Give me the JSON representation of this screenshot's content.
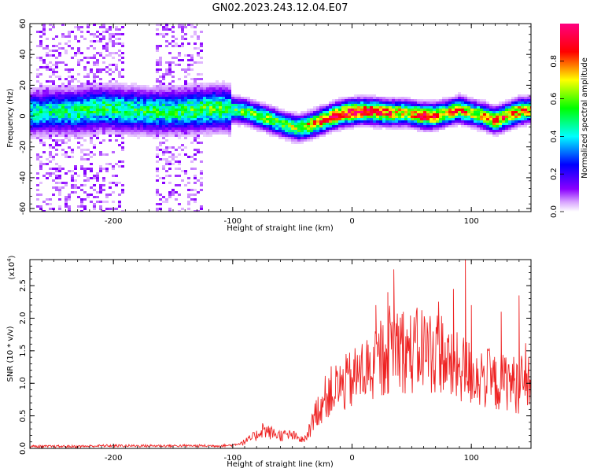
{
  "figure": {
    "title": "GN02.2023.243.12.04.E07"
  },
  "chart_data": [
    {
      "type": "heatmap",
      "name": "spectrogram",
      "xlabel": "Height of straight line (km)",
      "ylabel": "Frequency (Hz)",
      "xlim": [
        -270,
        150
      ],
      "ylim": [
        -62,
        60
      ],
      "x_ticks": [
        -200,
        -100,
        0,
        100
      ],
      "y_ticks": [
        -60,
        -40,
        -20,
        0,
        20,
        40,
        60
      ],
      "colorbar": {
        "label": "Normalized spectral amplitude",
        "range": [
          0,
          1
        ],
        "ticks": [
          0.0,
          0.2,
          0.4,
          0.6,
          0.8
        ],
        "colors": [
          "#ffffff",
          "#d9a6ff",
          "#8a00ff",
          "#0000ff",
          "#00ffff",
          "#00ff00",
          "#ffff00",
          "#ff0000",
          "#ff0080"
        ]
      },
      "ridge": {
        "x": [
          -270,
          -250,
          -230,
          -210,
          -190,
          -170,
          -150,
          -130,
          -110,
          -90,
          -70,
          -55,
          -45,
          -35,
          -25,
          -15,
          -5,
          5,
          15,
          30,
          45,
          60,
          70,
          80,
          90,
          100,
          110,
          120,
          130,
          140,
          150
        ],
        "y": [
          2,
          3,
          3,
          5,
          4,
          3,
          3,
          4,
          5,
          3,
          -2,
          -6,
          -8,
          -6,
          -3,
          0,
          2,
          3,
          3,
          2,
          2,
          0,
          0,
          2,
          4,
          2,
          0,
          -3,
          0,
          3,
          4
        ],
        "amplitude": [
          0.45,
          0.45,
          0.5,
          0.5,
          0.5,
          0.5,
          0.5,
          0.55,
          0.55,
          0.55,
          0.6,
          0.55,
          0.65,
          0.75,
          0.85,
          0.9,
          0.95,
          0.95,
          0.9,
          0.85,
          0.7,
          0.9,
          0.85,
          0.7,
          0.8,
          0.7,
          0.75,
          0.8,
          0.85,
          0.8,
          0.75
        ]
      },
      "noise_bands_x": [
        [
          -265,
          -190
        ],
        [
          -165,
          -125
        ]
      ]
    },
    {
      "type": "line",
      "name": "snr",
      "xlabel": "Height of straight line (km)",
      "ylabel": "SNR (10 * v/v)",
      "y_scale_label": "(x10",
      "y_scale_exponent": "4",
      "xlim": [
        -270,
        150
      ],
      "ylim": [
        0,
        2.9
      ],
      "x_ticks": [
        -200,
        -100,
        0,
        100
      ],
      "y_ticks": [
        0.0,
        0.5,
        1.0,
        1.5,
        2.0,
        2.5
      ],
      "series": [
        {
          "color": "#ee2222",
          "x": [
            -270,
            -250,
            -230,
            -210,
            -190,
            -170,
            -150,
            -130,
            -110,
            -100,
            -90,
            -80,
            -75,
            -70,
            -60,
            -50,
            -45,
            -40,
            -35,
            -30,
            -25,
            -20,
            -10,
            0,
            10,
            20,
            25,
            30,
            35,
            40,
            45,
            50,
            55,
            60,
            65,
            70,
            75,
            80,
            85,
            90,
            95,
            100,
            110,
            120,
            130,
            140,
            150
          ],
          "y": [
            0.03,
            0.03,
            0.03,
            0.04,
            0.04,
            0.04,
            0.04,
            0.04,
            0.04,
            0.05,
            0.1,
            0.2,
            0.3,
            0.25,
            0.2,
            0.2,
            0.15,
            0.12,
            0.3,
            0.55,
            0.7,
            0.85,
            0.95,
            1.05,
            1.2,
            1.25,
            1.35,
            1.5,
            1.65,
            1.6,
            1.5,
            1.45,
            1.5,
            1.55,
            1.5,
            1.45,
            1.5,
            1.3,
            1.2,
            1.25,
            1.2,
            1.15,
            1.1,
            1.0,
            1.05,
            0.95,
            1.0
          ]
        }
      ],
      "spikes": [
        {
          "x": 35,
          "y": 2.75
        },
        {
          "x": 95,
          "y": 2.9
        },
        {
          "x": 30,
          "y": 2.4
        },
        {
          "x": 85,
          "y": 2.45
        },
        {
          "x": 140,
          "y": 2.35
        },
        {
          "x": 125,
          "y": 2.1
        },
        {
          "x": 20,
          "y": 2.2
        },
        {
          "x": 100,
          "y": 2.2
        }
      ]
    }
  ]
}
